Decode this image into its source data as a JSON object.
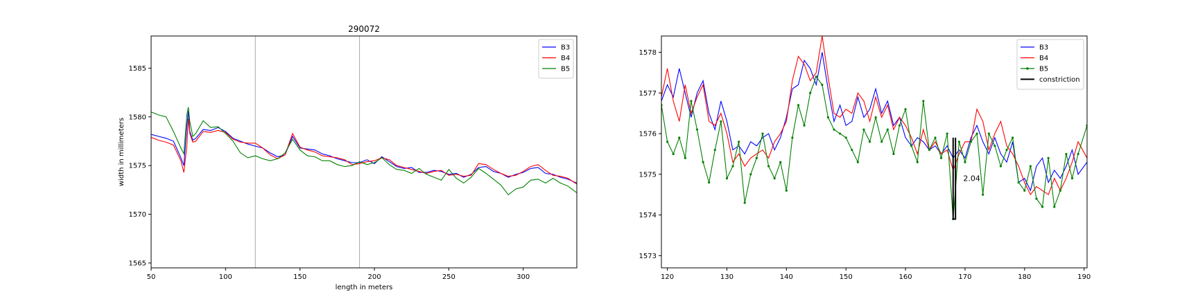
{
  "colors": {
    "B3": "#0000ff",
    "B4": "#ff0000",
    "B5": "#008000",
    "constriction": "#000000",
    "vline": "#a9a9a9"
  },
  "chart_data": [
    {
      "type": "line",
      "title": "290072",
      "xlabel": "length in meters",
      "ylabel": "width in millimeters",
      "xlim": [
        50,
        336
      ],
      "ylim": [
        1564.5,
        1588.3
      ],
      "xticks": [
        50,
        100,
        150,
        200,
        250,
        300
      ],
      "yticks": [
        1565,
        1570,
        1575,
        1580,
        1585
      ],
      "vlines": [
        120,
        190
      ],
      "legend_loc": "upper right",
      "grid": false,
      "series": [
        {
          "name": "B3",
          "color": "#0000ff",
          "marker": "none",
          "x": [
            50,
            55,
            60,
            65,
            70,
            72,
            74,
            75,
            76,
            78,
            80,
            85,
            90,
            95,
            100,
            105,
            110,
            115,
            120,
            125,
            130,
            135,
            140,
            145,
            150,
            155,
            160,
            165,
            170,
            175,
            180,
            185,
            190,
            195,
            200,
            205,
            210,
            215,
            220,
            225,
            230,
            235,
            240,
            245,
            250,
            255,
            260,
            265,
            270,
            275,
            280,
            285,
            290,
            295,
            300,
            305,
            310,
            315,
            320,
            325,
            330,
            336
          ],
          "y": [
            1578.2,
            1578,
            1577.8,
            1577.5,
            1575.8,
            1575,
            1579,
            1580.6,
            1578.5,
            1577.6,
            1577.8,
            1578.7,
            1578.6,
            1578.9,
            1578.5,
            1577.8,
            1577.5,
            1577.2,
            1577,
            1576.8,
            1576.3,
            1575.9,
            1576.1,
            1578,
            1576.8,
            1576.7,
            1576.6,
            1576.2,
            1576,
            1575.7,
            1575.5,
            1575.3,
            1575.3,
            1575.6,
            1575.2,
            1575.9,
            1575.4,
            1574.9,
            1574.7,
            1574.8,
            1574.3,
            1574.3,
            1574.5,
            1574.4,
            1574.1,
            1574.2,
            1573.8,
            1574.1,
            1574.8,
            1574.9,
            1574.4,
            1574.2,
            1573.8,
            1574.1,
            1574.3,
            1574.7,
            1574.8,
            1574.2,
            1574.1,
            1573.8,
            1573.6,
            1573.2
          ]
        },
        {
          "name": "B4",
          "color": "#ff0000",
          "marker": "none",
          "x": [
            50,
            55,
            60,
            65,
            70,
            72,
            74,
            75,
            76,
            78,
            80,
            85,
            90,
            95,
            100,
            105,
            110,
            115,
            120,
            125,
            130,
            135,
            140,
            145,
            150,
            155,
            160,
            165,
            170,
            175,
            180,
            185,
            190,
            195,
            200,
            205,
            210,
            215,
            220,
            225,
            230,
            235,
            240,
            245,
            250,
            255,
            260,
            265,
            270,
            275,
            280,
            285,
            290,
            295,
            300,
            305,
            310,
            315,
            320,
            325,
            330,
            336
          ],
          "y": [
            1577.9,
            1577.6,
            1577.4,
            1577.1,
            1575.5,
            1574.3,
            1577,
            1579.8,
            1578.3,
            1577.4,
            1577.5,
            1578.5,
            1578.4,
            1578.6,
            1578.4,
            1577.7,
            1577.4,
            1577.3,
            1577.3,
            1576.8,
            1576.1,
            1575.7,
            1576.1,
            1578.3,
            1576.9,
            1576.6,
            1576.4,
            1576,
            1575.9,
            1575.8,
            1575.6,
            1575.1,
            1575.2,
            1575.4,
            1575.5,
            1575.8,
            1575.6,
            1575,
            1574.8,
            1574.6,
            1574.4,
            1574.2,
            1574.4,
            1574.5,
            1574,
            1574.1,
            1573.9,
            1574,
            1575.2,
            1575.1,
            1574.6,
            1574.2,
            1573.9,
            1574,
            1574.4,
            1574.9,
            1575.1,
            1574.5,
            1574,
            1573.9,
            1573.7,
            1573.1
          ]
        },
        {
          "name": "B5",
          "color": "#008000",
          "marker": "none",
          "x": [
            50,
            55,
            60,
            65,
            70,
            72,
            74,
            75,
            76,
            78,
            80,
            85,
            90,
            95,
            100,
            105,
            110,
            115,
            120,
            125,
            130,
            135,
            140,
            145,
            150,
            155,
            160,
            165,
            170,
            175,
            180,
            185,
            190,
            195,
            200,
            205,
            210,
            215,
            220,
            225,
            230,
            235,
            240,
            245,
            250,
            255,
            260,
            265,
            270,
            275,
            280,
            285,
            290,
            295,
            300,
            305,
            310,
            315,
            320,
            325,
            330,
            336
          ],
          "y": [
            1580.5,
            1580.2,
            1580,
            1578.5,
            1576.8,
            1576.2,
            1580.2,
            1581,
            1579.5,
            1578,
            1578.3,
            1579.6,
            1578.9,
            1579,
            1578.3,
            1577.5,
            1576.3,
            1575.8,
            1576,
            1575.7,
            1575.5,
            1575.7,
            1576.3,
            1577.7,
            1576.6,
            1576,
            1575.9,
            1575.5,
            1575.5,
            1575.1,
            1574.9,
            1575,
            1575.4,
            1575.1,
            1575.3,
            1575.8,
            1575.1,
            1574.6,
            1574.5,
            1574.2,
            1574.7,
            1574.1,
            1573.8,
            1573.5,
            1574.6,
            1573.7,
            1573.2,
            1573.8,
            1574.7,
            1574.2,
            1573.6,
            1573,
            1572,
            1572.6,
            1572.8,
            1573.5,
            1573.6,
            1573.2,
            1573.7,
            1573.2,
            1572.9,
            1572.2
          ]
        }
      ]
    },
    {
      "type": "line",
      "title": "",
      "xlabel": "",
      "ylabel": "",
      "xlim": [
        119,
        190.5
      ],
      "ylim": [
        1572.7,
        1578.4
      ],
      "xticks": [
        120,
        130,
        140,
        150,
        160,
        170,
        180,
        190
      ],
      "yticks": [
        1573,
        1574,
        1575,
        1576,
        1577,
        1578
      ],
      "legend_loc": "upper right",
      "grid": false,
      "annotation": {
        "text": "2.04",
        "x": 169.7,
        "y": 1574.9
      },
      "series": [
        {
          "name": "B3",
          "color": "#0000ff",
          "marker": "none",
          "x": [
            119,
            120,
            121,
            122,
            123,
            124,
            125,
            126,
            127,
            128,
            129,
            130,
            131,
            132,
            133,
            134,
            135,
            136,
            137,
            138,
            139,
            140,
            141,
            142,
            143,
            144,
            145,
            146,
            147,
            148,
            149,
            150,
            151,
            152,
            153,
            154,
            155,
            156,
            157,
            158,
            159,
            160,
            161,
            162,
            163,
            164,
            165,
            166,
            167,
            168,
            169,
            170,
            171,
            172,
            173,
            174,
            175,
            176,
            177,
            178,
            179,
            180,
            181,
            182,
            183,
            184,
            185,
            186,
            187,
            188,
            189,
            190.5
          ],
          "y": [
            1576.8,
            1577.2,
            1576.9,
            1577.6,
            1577,
            1576.4,
            1577,
            1577.3,
            1576.5,
            1576.1,
            1576.8,
            1576.3,
            1575.6,
            1575.7,
            1575.5,
            1575.8,
            1575.7,
            1575.9,
            1576,
            1575.6,
            1575.9,
            1576.4,
            1577.1,
            1577.2,
            1577.8,
            1577.6,
            1577.2,
            1578,
            1577.1,
            1576.3,
            1576.7,
            1576.2,
            1576.3,
            1576.9,
            1576.4,
            1576.6,
            1577.1,
            1576.5,
            1576.8,
            1576.2,
            1576.4,
            1575.9,
            1575.7,
            1575.9,
            1575.8,
            1575.6,
            1575.7,
            1575.5,
            1575.7,
            1575.4,
            1575.6,
            1575.4,
            1575.9,
            1576.2,
            1575.8,
            1575.5,
            1575.9,
            1575.5,
            1575.3,
            1575.8,
            1574.8,
            1574.9,
            1574.6,
            1575.2,
            1575.4,
            1574.8,
            1575.1,
            1574.9,
            1575.2,
            1575.6,
            1575,
            1575.3
          ]
        },
        {
          "name": "B4",
          "color": "#ff0000",
          "marker": "none",
          "x": [
            119,
            120,
            121,
            122,
            123,
            124,
            125,
            126,
            127,
            128,
            129,
            130,
            131,
            132,
            133,
            134,
            135,
            136,
            137,
            138,
            139,
            140,
            141,
            142,
            143,
            144,
            145,
            146,
            147,
            148,
            149,
            150,
            151,
            152,
            153,
            154,
            155,
            156,
            157,
            158,
            159,
            160,
            161,
            162,
            163,
            164,
            165,
            166,
            167,
            168,
            169,
            170,
            171,
            172,
            173,
            174,
            175,
            176,
            177,
            178,
            179,
            180,
            181,
            182,
            183,
            184,
            185,
            186,
            187,
            188,
            189,
            190.5
          ],
          "y": [
            1576.9,
            1577.6,
            1576.8,
            1576.3,
            1577.2,
            1576.5,
            1576.9,
            1577.2,
            1576.3,
            1576.2,
            1576.5,
            1576,
            1575.3,
            1575.5,
            1575.2,
            1575.4,
            1575.5,
            1575.6,
            1575.4,
            1575.8,
            1576,
            1576.3,
            1577.3,
            1577.9,
            1577.7,
            1577.3,
            1577.5,
            1578.4,
            1577.4,
            1576.5,
            1576.4,
            1576.6,
            1576.5,
            1577,
            1576.8,
            1576.3,
            1576.9,
            1576.4,
            1576.7,
            1576.1,
            1576.4,
            1576.2,
            1575.9,
            1575.5,
            1576.1,
            1575.6,
            1575.8,
            1575.5,
            1575.6,
            1575.1,
            1575.5,
            1575.8,
            1575.8,
            1576.6,
            1576.3,
            1575.6,
            1576,
            1576.3,
            1575.7,
            1575.5,
            1575.2,
            1574.8,
            1574.5,
            1574.7,
            1574.6,
            1574.5,
            1574.9,
            1574.6,
            1574.9,
            1575.3,
            1575.8,
            1575.4
          ]
        },
        {
          "name": "B5",
          "color": "#008000",
          "marker": "dot",
          "x": [
            119,
            120,
            121,
            122,
            123,
            124,
            125,
            126,
            127,
            128,
            129,
            130,
            131,
            132,
            133,
            134,
            135,
            136,
            137,
            138,
            139,
            140,
            141,
            142,
            143,
            144,
            145,
            146,
            147,
            148,
            149,
            150,
            151,
            152,
            153,
            154,
            155,
            156,
            157,
            158,
            159,
            160,
            161,
            162,
            163,
            164,
            165,
            166,
            167,
            168,
            169,
            170,
            171,
            172,
            173,
            174,
            175,
            176,
            177,
            178,
            179,
            180,
            181,
            182,
            183,
            184,
            185,
            186,
            187,
            188,
            189,
            190.5
          ],
          "y": [
            1576.7,
            1575.8,
            1575.5,
            1575.9,
            1575.4,
            1576.8,
            1576.1,
            1575.3,
            1574.8,
            1575.6,
            1576.3,
            1574.9,
            1575.2,
            1575.8,
            1574.3,
            1575,
            1575.4,
            1576,
            1575.2,
            1574.9,
            1575.3,
            1574.6,
            1575.9,
            1576.7,
            1576.2,
            1577,
            1577.4,
            1577.2,
            1576.4,
            1576.1,
            1576,
            1575.9,
            1575.6,
            1575.3,
            1576.1,
            1575.8,
            1576.4,
            1575.8,
            1576.1,
            1575.5,
            1576.2,
            1576.6,
            1575.7,
            1575.3,
            1576.8,
            1575.6,
            1575.9,
            1575.4,
            1576,
            1573.9,
            1575.8,
            1575.3,
            1575.8,
            1576,
            1574.5,
            1576,
            1575.7,
            1575.2,
            1575.6,
            1575.9,
            1574.8,
            1574.6,
            1575.2,
            1574.4,
            1574.2,
            1575.4,
            1574.2,
            1574.6,
            1575.5,
            1574.9,
            1575.5,
            1576.2
          ]
        },
        {
          "name": "constriction",
          "color": "#000000",
          "marker": "none",
          "x": [
            168,
            168,
            168.4,
            168.4
          ],
          "y": [
            1575.9,
            1573.9,
            1573.9,
            1575.9
          ]
        }
      ]
    }
  ]
}
